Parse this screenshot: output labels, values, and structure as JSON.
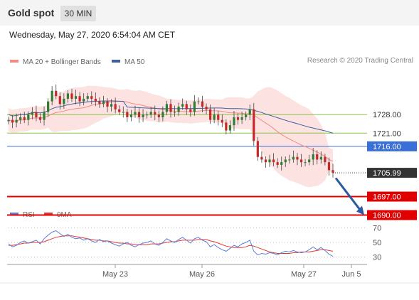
{
  "header": {
    "title": "Gold spot",
    "interval": "30 MIN"
  },
  "datetime": "Wednesday, May 27, 2020 6:54:04 AM CET",
  "credit": "Research © 2020 Trading Central",
  "colors": {
    "bollinger_fill": "#fcd6d6",
    "ma20": "#f28b82",
    "ma50": "#3f5f9f",
    "candle_up": "#2e7d32",
    "candle_down": "#c62828",
    "support": "#e00000",
    "pivot": "#3a6fd8",
    "resistance": "#8bc34a",
    "current_price": "#333333",
    "rsi": "#5b7fd6",
    "rsi_ma": "#e53935"
  },
  "chart_data": [
    {
      "type": "candlestick",
      "legend": [
        {
          "name": "MA 20 + Bollinger Bands",
          "color": "#f28b82"
        },
        {
          "name": "MA 50",
          "color": "#3f5f9f"
        }
      ],
      "x_ticks": [
        "May 23",
        "May 26",
        "May 27",
        "Jun 5"
      ],
      "levels": [
        {
          "value": 1728.0,
          "label": "1728.00",
          "kind": "resistance"
        },
        {
          "value": 1721.0,
          "label": "1721.00",
          "kind": "resistance"
        },
        {
          "value": 1716.0,
          "label": "1716.00",
          "kind": "pivot"
        },
        {
          "value": 1705.99,
          "label": "1705.99",
          "kind": "current"
        },
        {
          "value": 1697.0,
          "label": "1697.00",
          "kind": "support"
        },
        {
          "value": 1690.0,
          "label": "1690.00",
          "kind": "support"
        }
      ],
      "ylim": [
        1688,
        1745
      ],
      "arrow": {
        "from": 1704,
        "to": 1690,
        "direction": "down"
      },
      "close_path": [
        1726,
        1725,
        1726,
        1727,
        1726,
        1728,
        1729,
        1727,
        1726,
        1729,
        1733,
        1737,
        1735,
        1732,
        1734,
        1736,
        1734,
        1735,
        1733,
        1734,
        1735,
        1734,
        1733,
        1732,
        1733,
        1731,
        1732,
        1730,
        1729,
        1729,
        1727,
        1728,
        1729,
        1727,
        1728,
        1728,
        1729,
        1728,
        1727,
        1729,
        1732,
        1729,
        1729,
        1731,
        1732,
        1730,
        1729,
        1733,
        1733,
        1731,
        1730,
        1726,
        1728,
        1726,
        1725,
        1722,
        1724,
        1727,
        1726,
        1727,
        1728,
        1730,
        1718,
        1712,
        1711,
        1710,
        1711,
        1710,
        1709,
        1710,
        1711,
        1711,
        1712,
        1711,
        1710,
        1710,
        1711,
        1713,
        1711,
        1712,
        1710,
        1707,
        1705.99
      ]
    },
    {
      "type": "line",
      "legend": [
        {
          "name": "RSI",
          "color": "#5b7fd6"
        },
        {
          "name": "9MA",
          "color": "#e53935"
        }
      ],
      "y_ticks": [
        70,
        50,
        30
      ],
      "ylim": [
        20,
        80
      ],
      "rsi": [
        48,
        44,
        46,
        50,
        52,
        49,
        51,
        53,
        48,
        55,
        60,
        64,
        66,
        62,
        58,
        61,
        57,
        55,
        56,
        53,
        55,
        52,
        50,
        54,
        51,
        52,
        49,
        47,
        45,
        48,
        50,
        46,
        44,
        47,
        49,
        50,
        52,
        48,
        46,
        50,
        55,
        52,
        50,
        54,
        57,
        53,
        49,
        55,
        57,
        53,
        51,
        44,
        47,
        43,
        40,
        38,
        42,
        46,
        44,
        48,
        50,
        53,
        38,
        33,
        35,
        34,
        36,
        35,
        33,
        36,
        38,
        37,
        39,
        37,
        36,
        37,
        40,
        44,
        40,
        43,
        39,
        34,
        31
      ],
      "ma9": [
        46,
        46,
        47,
        48,
        49,
        49,
        50,
        50,
        50,
        51,
        53,
        55,
        57,
        58,
        59,
        59,
        59,
        58,
        57,
        56,
        55,
        54,
        53,
        53,
        52,
        52,
        51,
        50,
        49,
        49,
        48,
        48,
        47,
        47,
        47,
        47,
        48,
        48,
        48,
        49,
        50,
        51,
        51,
        52,
        53,
        53,
        53,
        53,
        54,
        54,
        54,
        52,
        51,
        49,
        47,
        45,
        44,
        43,
        43,
        43,
        44,
        46,
        45,
        43,
        41,
        39,
        37,
        36,
        35,
        35,
        35,
        35,
        36,
        36,
        37,
        37,
        37,
        38,
        39,
        40,
        40,
        39,
        38
      ]
    }
  ]
}
